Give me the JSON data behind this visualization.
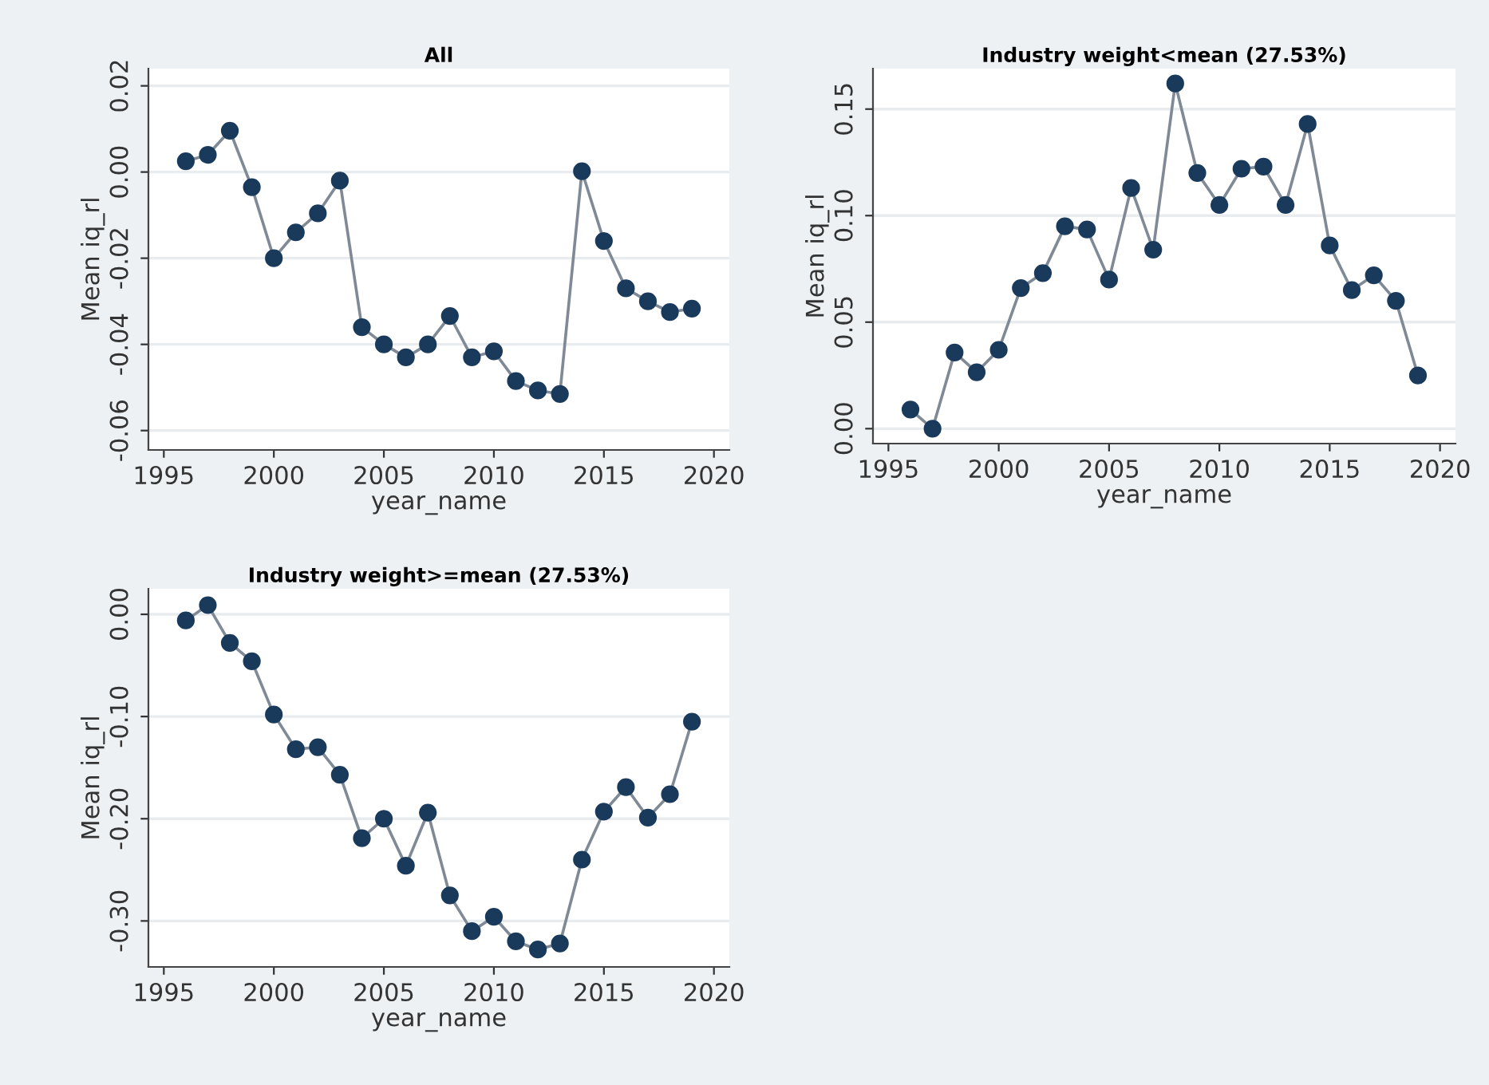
{
  "chart_data": [
    {
      "type": "line",
      "title": "All",
      "xlabel": "year_name",
      "ylabel": "Mean iq_rl",
      "marker": "circle",
      "line_style": "solid",
      "grid": "y",
      "x": [
        1996,
        1997,
        1998,
        1999,
        2000,
        2001,
        2002,
        2003,
        2004,
        2005,
        2006,
        2007,
        2008,
        2009,
        2010,
        2011,
        2012,
        2013,
        2014,
        2015,
        2016,
        2017,
        2018,
        2019
      ],
      "series": [
        {
          "color": "#1a3a5c",
          "values": [
            0.0025,
            0.004,
            0.0096,
            -0.0035,
            -0.02,
            -0.014,
            -0.0096,
            -0.002,
            -0.036,
            -0.04,
            -0.043,
            -0.04,
            -0.0334,
            -0.043,
            -0.0416,
            -0.0485,
            -0.0507,
            -0.0515,
            0.0002,
            -0.016,
            -0.027,
            -0.03,
            -0.0325,
            -0.0317
          ]
        }
      ],
      "xlim": [
        1994.3,
        2020.7
      ],
      "xticks": [
        1995,
        2000,
        2005,
        2010,
        2015,
        2020
      ],
      "ylim": [
        -0.0645,
        0.024
      ],
      "yticks": [
        {
          "value": -0.06,
          "label": "-0.06"
        },
        {
          "value": -0.04,
          "label": "-0.04"
        },
        {
          "value": -0.02,
          "label": "-0.02"
        },
        {
          "value": 0.0,
          "label": "0.00"
        },
        {
          "value": 0.02,
          "label": "0.02"
        }
      ]
    },
    {
      "type": "line",
      "title": "Industry weight<mean (27.53%)",
      "xlabel": "year_name",
      "ylabel": "Mean iq_rl",
      "marker": "circle",
      "line_style": "solid",
      "grid": "y",
      "x": [
        1996,
        1997,
        1998,
        1999,
        2000,
        2001,
        2002,
        2003,
        2004,
        2005,
        2006,
        2007,
        2008,
        2009,
        2010,
        2011,
        2012,
        2013,
        2014,
        2015,
        2016,
        2017,
        2018,
        2019
      ],
      "series": [
        {
          "color": "#1a3a5c",
          "values": [
            0.009,
            0.0,
            0.0357,
            0.0265,
            0.037,
            0.066,
            0.073,
            0.095,
            0.0935,
            0.07,
            0.113,
            0.084,
            0.162,
            0.12,
            0.105,
            0.122,
            0.123,
            0.105,
            0.143,
            0.086,
            0.065,
            0.072,
            0.06,
            0.025
          ]
        }
      ],
      "xlim": [
        1994.3,
        2020.7
      ],
      "xticks": [
        1995,
        2000,
        2005,
        2010,
        2015,
        2020
      ],
      "ylim": [
        -0.007,
        0.169
      ],
      "yticks": [
        {
          "value": 0.0,
          "label": "0.00"
        },
        {
          "value": 0.05,
          "label": "0.05"
        },
        {
          "value": 0.1,
          "label": "0.10"
        },
        {
          "value": 0.15,
          "label": "0.15"
        }
      ]
    },
    {
      "type": "line",
      "title": "Industry weight>=mean (27.53%)",
      "xlabel": "year_name",
      "ylabel": "Mean iq_rl",
      "marker": "circle",
      "line_style": "solid",
      "grid": "y",
      "x": [
        1996,
        1997,
        1998,
        1999,
        2000,
        2001,
        2002,
        2003,
        2004,
        2005,
        2006,
        2007,
        2008,
        2009,
        2010,
        2011,
        2012,
        2013,
        2014,
        2015,
        2016,
        2017,
        2018,
        2019
      ],
      "series": [
        {
          "color": "#1a3a5c",
          "values": [
            -0.006,
            0.009,
            -0.028,
            -0.046,
            -0.098,
            -0.132,
            -0.13,
            -0.157,
            -0.219,
            -0.2,
            -0.246,
            -0.194,
            -0.275,
            -0.31,
            -0.296,
            -0.32,
            -0.328,
            -0.322,
            -0.24,
            -0.193,
            -0.169,
            -0.199,
            -0.176,
            -0.105
          ]
        }
      ],
      "xlim": [
        1994.3,
        2020.7
      ],
      "xticks": [
        1995,
        2000,
        2005,
        2010,
        2015,
        2020
      ],
      "ylim": [
        -0.345,
        0.025
      ],
      "yticks": [
        {
          "value": -0.3,
          "label": "-0.30"
        },
        {
          "value": -0.2,
          "label": "-0.20"
        },
        {
          "value": -0.1,
          "label": "-0.10"
        },
        {
          "value": 0.0,
          "label": "0.00"
        }
      ]
    }
  ]
}
